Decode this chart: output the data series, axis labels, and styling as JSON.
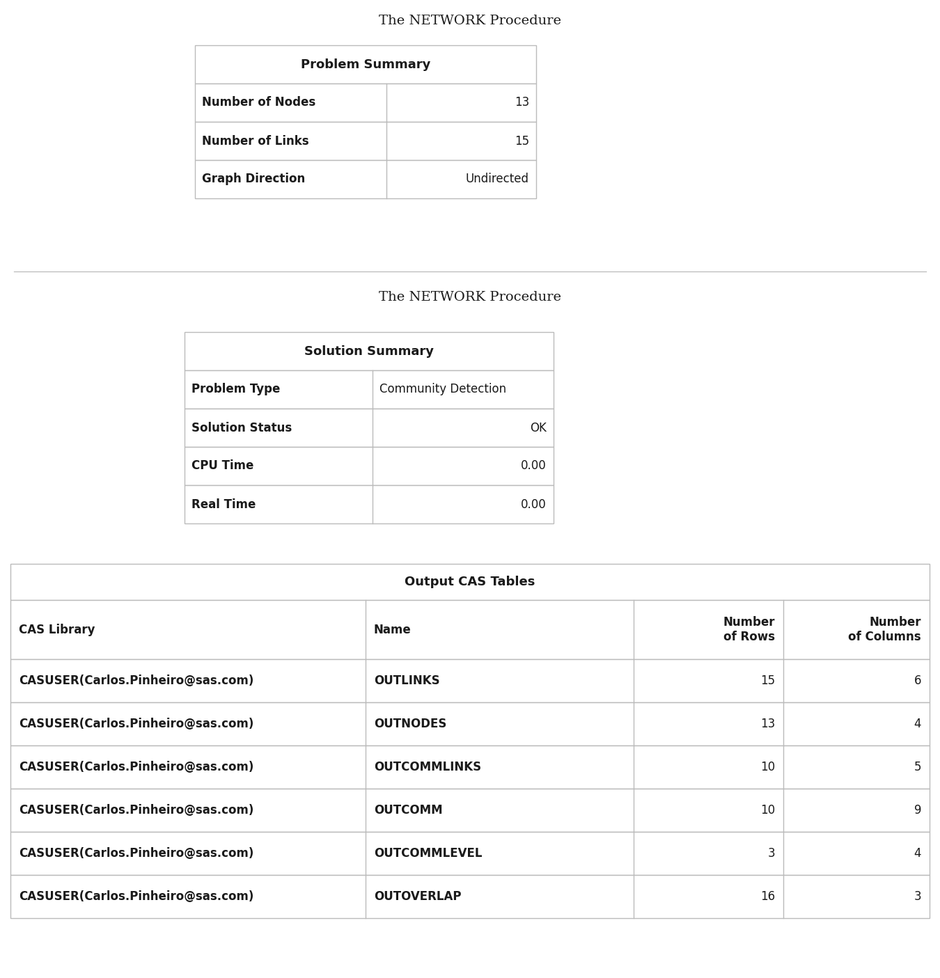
{
  "title1": "The NETWORK Procedure",
  "table1_header": "Problem Summary",
  "table1_rows": [
    [
      "Number of Nodes",
      "13"
    ],
    [
      "Number of Links",
      "15"
    ],
    [
      "Graph Direction",
      "Undirected"
    ]
  ],
  "title2": "The NETWORK Procedure",
  "table2_header": "Solution Summary",
  "table2_rows": [
    [
      "Problem Type",
      "Community Detection"
    ],
    [
      "Solution Status",
      "OK"
    ],
    [
      "CPU Time",
      "0.00"
    ],
    [
      "Real Time",
      "0.00"
    ]
  ],
  "table3_header": "Output CAS Tables",
  "table3_col_headers": [
    "CAS Library",
    "Name",
    "Number\nof Rows",
    "Number\nof Columns"
  ],
  "table3_rows": [
    [
      "CASUSER(Carlos.Pinheiro@sas.com)",
      "OUTLINKS",
      "15",
      "6"
    ],
    [
      "CASUSER(Carlos.Pinheiro@sas.com)",
      "OUTNODES",
      "13",
      "4"
    ],
    [
      "CASUSER(Carlos.Pinheiro@sas.com)",
      "OUTCOMMLINKS",
      "10",
      "5"
    ],
    [
      "CASUSER(Carlos.Pinheiro@sas.com)",
      "OUTCOMM",
      "10",
      "9"
    ],
    [
      "CASUSER(Carlos.Pinheiro@sas.com)",
      "OUTCOMMLEVEL",
      "3",
      "4"
    ],
    [
      "CASUSER(Carlos.Pinheiro@sas.com)",
      "OUTOVERLAP",
      "16",
      "3"
    ]
  ],
  "bg_color": "#ffffff",
  "text_color": "#1a1a1a",
  "border_color": "#bbbbbb",
  "title_fontsize": 14,
  "header_fontsize": 13,
  "cell_fontsize": 12
}
